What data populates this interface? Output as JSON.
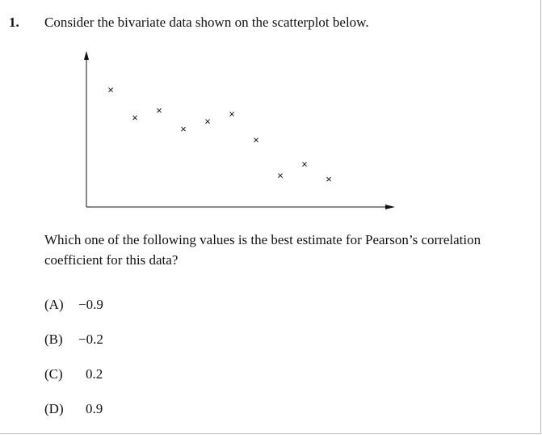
{
  "question": {
    "number": "1.",
    "intro": "Consider the bivariate data shown on the scatterplot below.",
    "prompt": "Which one of the following values is the best estimate for Pearson’s correlation coefficient for this data?",
    "options": [
      {
        "letter": "(A)",
        "value": "−0.9"
      },
      {
        "letter": "(B)",
        "value": "−0.2"
      },
      {
        "letter": "(C)",
        "value": "0.2"
      },
      {
        "letter": "(D)",
        "value": "0.9"
      }
    ]
  },
  "chart_data": {
    "type": "scatter",
    "marker": "×",
    "title": "",
    "xlabel": "",
    "ylabel": "",
    "x": [
      1,
      2,
      3,
      4,
      5,
      6,
      7,
      8,
      9,
      10
    ],
    "y": [
      6.3,
      4.8,
      5.2,
      4.2,
      4.6,
      5.0,
      3.6,
      1.7,
      2.3,
      1.5
    ],
    "xlim": [
      0,
      12.4
    ],
    "ylim": [
      0,
      8
    ],
    "grid": false
  }
}
